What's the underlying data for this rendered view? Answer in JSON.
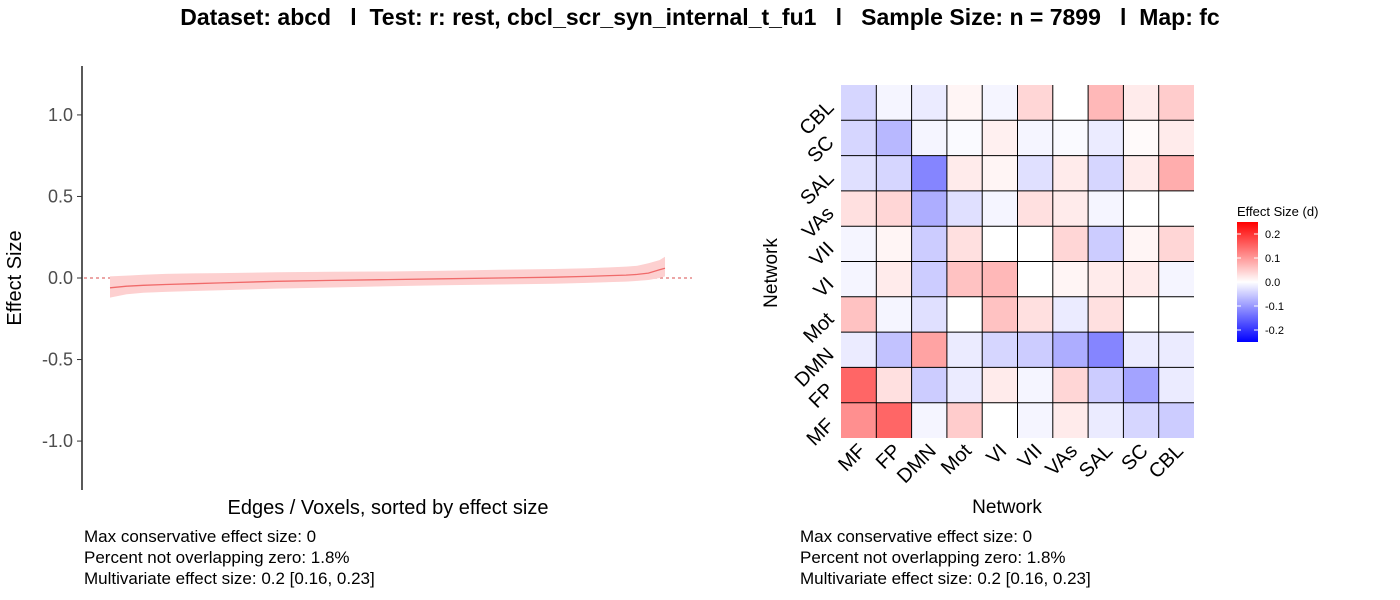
{
  "title": "Dataset: abcd   l  Test: r: rest, cbcl_scr_syn_internal_t_fu1   l   Sample Size: n = 7899   l  Map: fc",
  "colors": {
    "line": "#f06a6a",
    "ribbon": "#fdd0d0",
    "zero_line": "#e07070",
    "low": "#0000ff",
    "mid": "#ffffff",
    "high": "#ff0000"
  },
  "chart_data": [
    {
      "type": "line",
      "title": "",
      "xlabel": "Edges / Voxels, sorted by effect size",
      "ylabel": "Effect Size",
      "ylim": [
        -1.3,
        1.3
      ],
      "yticks": [
        "1.0",
        "0.5",
        "0.0",
        "-0.5",
        "-1.0"
      ],
      "ytick_values": [
        1.0,
        0.5,
        0.0,
        -0.5,
        -1.0
      ],
      "grid": false,
      "reference_line": 0,
      "x": [
        0,
        0.03,
        0.06,
        0.1,
        0.15,
        0.2,
        0.3,
        0.4,
        0.5,
        0.6,
        0.7,
        0.8,
        0.86,
        0.9,
        0.93,
        0.95,
        0.97,
        0.99,
        1.0
      ],
      "series": [
        {
          "values": [
            -0.06,
            -0.05,
            -0.045,
            -0.04,
            -0.035,
            -0.03,
            -0.02,
            -0.015,
            -0.01,
            -0.005,
            0.0,
            0.005,
            0.01,
            0.015,
            0.018,
            0.022,
            0.03,
            0.05,
            0.06
          ],
          "lower": [
            -0.12,
            -0.1,
            -0.09,
            -0.085,
            -0.08,
            -0.075,
            -0.065,
            -0.058,
            -0.05,
            -0.045,
            -0.04,
            -0.035,
            -0.03,
            -0.025,
            -0.022,
            -0.018,
            -0.012,
            0.0,
            0.01
          ],
          "upper": [
            0.01,
            0.015,
            0.02,
            0.025,
            0.028,
            0.03,
            0.035,
            0.038,
            0.04,
            0.045,
            0.05,
            0.055,
            0.06,
            0.065,
            0.07,
            0.075,
            0.09,
            0.11,
            0.13
          ]
        }
      ],
      "stats": [
        "Max conservative effect size: 0",
        "Percent not overlapping zero: 1.8%",
        "Multivariate effect size: 0.2 [0.16, 0.23]"
      ]
    },
    {
      "type": "heatmap",
      "title": "",
      "xlabel": "Network",
      "ylabel": "Network",
      "x_categories": [
        "MF",
        "FP",
        "DMN",
        "Mot",
        "VI",
        "VII",
        "VAs",
        "SAL",
        "SC",
        "CBL"
      ],
      "y_categories_top_to_bottom": [
        "CBL",
        "SC",
        "SAL",
        "VAs",
        "VII",
        "VI",
        "Mot",
        "DMN",
        "FP",
        "MF"
      ],
      "values_rows_top_to_bottom": [
        [
          -0.04,
          -0.01,
          -0.02,
          0.01,
          -0.01,
          0.04,
          0.0,
          0.07,
          0.02,
          0.05
        ],
        [
          -0.04,
          -0.07,
          -0.01,
          -0.005,
          0.015,
          -0.01,
          -0.005,
          -0.02,
          0.005,
          0.02
        ],
        [
          -0.03,
          -0.04,
          -0.12,
          0.02,
          0.01,
          -0.03,
          0.02,
          -0.04,
          0.02,
          0.08
        ],
        [
          0.03,
          0.04,
          -0.08,
          -0.03,
          -0.01,
          0.03,
          0.02,
          -0.01,
          0.0,
          0.0
        ],
        [
          -0.01,
          0.01,
          -0.05,
          0.03,
          0.0,
          0.0,
          0.04,
          -0.05,
          0.01,
          0.04
        ],
        [
          -0.01,
          0.02,
          -0.05,
          0.06,
          0.07,
          0.0,
          0.01,
          0.02,
          0.02,
          -0.01
        ],
        [
          0.06,
          -0.01,
          -0.03,
          0.0,
          0.06,
          0.03,
          -0.02,
          0.03,
          0.0,
          0.0
        ],
        [
          -0.02,
          -0.06,
          0.09,
          -0.02,
          -0.04,
          -0.05,
          -0.08,
          -0.12,
          -0.02,
          -0.02
        ],
        [
          0.15,
          0.03,
          -0.05,
          -0.02,
          0.02,
          -0.01,
          0.04,
          -0.05,
          -0.09,
          -0.02
        ],
        [
          0.11,
          0.15,
          -0.01,
          0.05,
          0.0,
          -0.01,
          0.02,
          -0.02,
          -0.04,
          -0.05
        ]
      ],
      "legend": {
        "title": "Effect Size (d)",
        "placement": "right",
        "range": [
          -0.25,
          0.25
        ],
        "ticks": [
          "0.2",
          "0.1",
          "0.0",
          "-0.1",
          "-0.2"
        ],
        "tick_values": [
          0.2,
          0.1,
          0.0,
          -0.1,
          -0.2
        ]
      },
      "stats": [
        "Max conservative effect size: 0",
        "Percent not overlapping zero: 1.8%",
        "Multivariate effect size: 0.2 [0.16, 0.23]"
      ]
    }
  ]
}
